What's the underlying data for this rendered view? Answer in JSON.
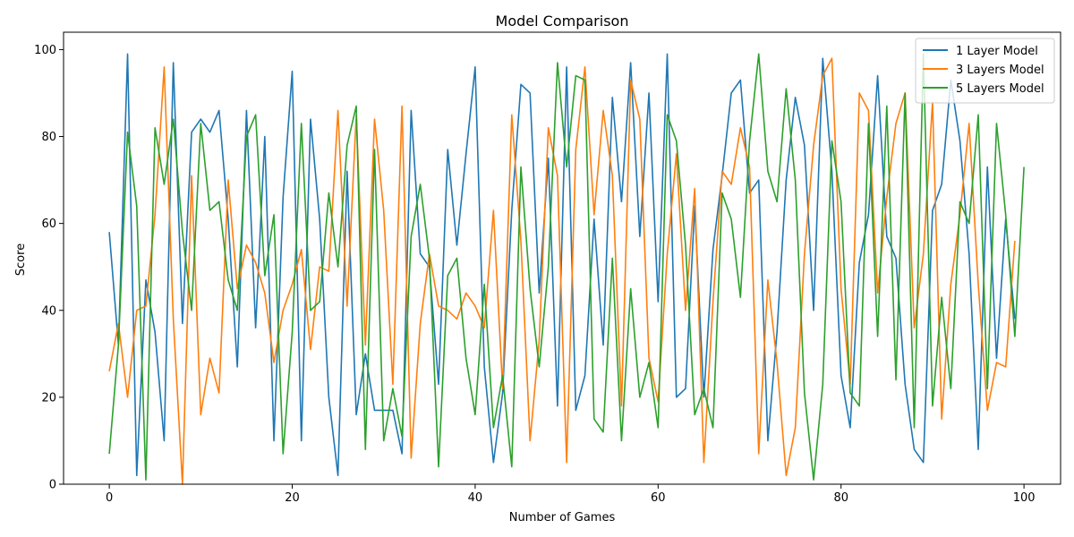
{
  "chart_data": {
    "type": "line",
    "title": "Model Comparison",
    "xlabel": "Number of Games",
    "ylabel": "Score",
    "xlim": [
      -5,
      104
    ],
    "ylim": [
      0,
      104
    ],
    "x_ticks": [
      0,
      20,
      40,
      60,
      80,
      100
    ],
    "y_ticks": [
      0,
      20,
      40,
      60,
      80,
      100
    ],
    "grid": false,
    "legend_position": "top-right",
    "series": [
      {
        "name": "1 Layer Model",
        "color": "#1f77b4",
        "values": [
          58,
          32,
          99,
          2,
          47,
          35,
          10,
          97,
          37,
          81,
          84,
          81,
          86,
          61,
          27,
          86,
          36,
          80,
          10,
          66,
          95,
          10,
          84,
          61,
          20,
          2,
          72,
          16,
          30,
          17,
          17,
          17,
          7,
          86,
          53,
          50,
          23,
          77,
          55,
          76,
          96,
          27,
          5,
          21,
          63,
          92,
          90,
          44,
          75,
          18,
          96,
          17,
          25,
          61,
          32,
          89,
          65,
          97,
          57,
          90,
          42,
          99,
          20,
          22,
          64,
          20,
          54,
          71,
          90,
          93,
          67,
          70,
          10,
          35,
          70,
          89,
          78,
          40,
          98,
          72,
          25,
          13,
          51,
          62,
          94,
          57,
          52,
          23,
          8,
          5,
          63,
          69,
          93,
          79,
          53,
          8,
          73,
          29,
          61,
          38
        ]
      },
      {
        "name": "3 Layers Model",
        "color": "#ff7f0e",
        "values": [
          26,
          37,
          20,
          40,
          41,
          62,
          96,
          38,
          0,
          71,
          16,
          29,
          21,
          70,
          45,
          55,
          51,
          44,
          28,
          40,
          46,
          54,
          31,
          50,
          49,
          86,
          41,
          85,
          32,
          84,
          63,
          23,
          87,
          6,
          37,
          53,
          41,
          40,
          38,
          44,
          41,
          36,
          63,
          22,
          85,
          56,
          10,
          33,
          82,
          71,
          5,
          77,
          96,
          62,
          86,
          71,
          18,
          93,
          84,
          29,
          19,
          53,
          76,
          40,
          68,
          5,
          42,
          72,
          69,
          82,
          73,
          7,
          47,
          28,
          2,
          13,
          53,
          78,
          94,
          98,
          45,
          23,
          90,
          86,
          44,
          66,
          83,
          90,
          36,
          53,
          88,
          15,
          46,
          62,
          83,
          46,
          17,
          28,
          27,
          56
        ]
      },
      {
        "name": "5 Layers Model",
        "color": "#2ca02c",
        "values": [
          7,
          32,
          81,
          64,
          1,
          82,
          69,
          84,
          58,
          40,
          83,
          63,
          65,
          47,
          40,
          80,
          85,
          48,
          62,
          7,
          35,
          83,
          40,
          42,
          67,
          50,
          78,
          87,
          8,
          77,
          10,
          22,
          11,
          57,
          69,
          52,
          4,
          48,
          52,
          29,
          16,
          46,
          13,
          25,
          4,
          73,
          45,
          27,
          50,
          97,
          73,
          94,
          93,
          15,
          12,
          52,
          10,
          45,
          20,
          28,
          13,
          85,
          79,
          55,
          16,
          22,
          13,
          67,
          61,
          43,
          79,
          99,
          72,
          65,
          91,
          70,
          21,
          1,
          23,
          79,
          65,
          21,
          18,
          83,
          34,
          87,
          24,
          90,
          13,
          99,
          18,
          43,
          22,
          65,
          60,
          85,
          22,
          83,
          62,
          34,
          73
        ]
      }
    ]
  }
}
